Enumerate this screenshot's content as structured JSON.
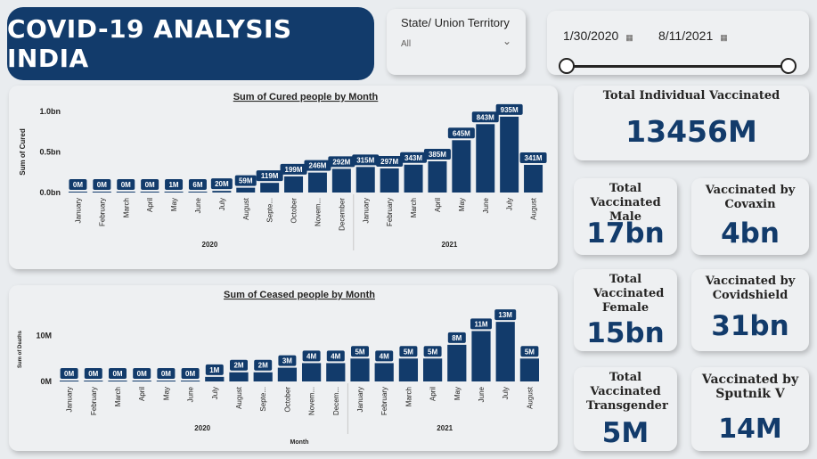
{
  "header": {
    "title": "COVID-19 ANALYSIS INDIA"
  },
  "slicer": {
    "label": "State/ Union Territory",
    "value": "All"
  },
  "date_range": {
    "start": "1/30/2020",
    "end": "8/11/2021"
  },
  "kpis": {
    "total_vaccinated": {
      "label": "Total Individual Vaccinated",
      "value": "13456M"
    },
    "male": {
      "label": "Total Vaccinated Male",
      "value": "17bn"
    },
    "covaxin": {
      "label": "Vaccinated by Covaxin",
      "value": "4bn"
    },
    "female": {
      "label": "Total Vaccinated Female",
      "value": "15bn"
    },
    "covidshield": {
      "label": "Vaccinated by Covidshield",
      "value": "31bn"
    },
    "transgender": {
      "label": "Total Vaccinated Transgender",
      "value": "5M"
    },
    "sputnik": {
      "label": "Vaccinated by Sputnik V",
      "value": "14M"
    }
  },
  "colors": {
    "bar": "#123b6b",
    "title_bg": "#123b6b",
    "accent_text": "#123b6b"
  },
  "chart_data": [
    {
      "type": "bar",
      "title": "Sum of Cured people by Month",
      "ylabel": "Sum of Cured",
      "xlabel": "",
      "ylim": [
        0,
        1000000000
      ],
      "yticks": [
        "0.0bn",
        "0.5bn",
        "1.0bn"
      ],
      "categories": [
        "January",
        "February",
        "March",
        "April",
        "May",
        "June",
        "July",
        "August",
        "Septe...",
        "October",
        "Novem...",
        "December",
        "January",
        "February",
        "March",
        "April",
        "May",
        "June",
        "July",
        "August"
      ],
      "year_groups": [
        {
          "year": "2020",
          "count": 12
        },
        {
          "year": "2021",
          "count": 8
        }
      ],
      "values": [
        0,
        0,
        0,
        0,
        1000000,
        6000000,
        20000000,
        59000000,
        119000000,
        199000000,
        246000000,
        292000000,
        315000000,
        297000000,
        343000000,
        385000000,
        645000000,
        843000000,
        935000000,
        341000000
      ],
      "labels": [
        "0M",
        "0M",
        "0M",
        "0M",
        "1M",
        "6M",
        "20M",
        "59M",
        "119M",
        "199M",
        "246M",
        "292M",
        "315M",
        "297M",
        "343M",
        "385M",
        "645M",
        "843M",
        "935M",
        "341M"
      ]
    },
    {
      "type": "bar",
      "title": "Sum of Ceased people by Month",
      "ylabel": "Sum of Deaths",
      "xlabel": "Month",
      "ylim": [
        0,
        14000000
      ],
      "yticks": [
        "0M",
        "10M"
      ],
      "categories": [
        "January",
        "February",
        "March",
        "April",
        "May",
        "June",
        "July",
        "August",
        "Septe...",
        "October",
        "Novem...",
        "Decem...",
        "January",
        "February",
        "March",
        "April",
        "May",
        "June",
        "July",
        "August"
      ],
      "year_groups": [
        {
          "year": "2020",
          "count": 12
        },
        {
          "year": "2021",
          "count": 8
        }
      ],
      "values": [
        0,
        0,
        0,
        0,
        0,
        0,
        1000000,
        2000000,
        2000000,
        3000000,
        4000000,
        4000000,
        5000000,
        4000000,
        5000000,
        5000000,
        8000000,
        11000000,
        13000000,
        5000000
      ],
      "labels": [
        "0M",
        "0M",
        "0M",
        "0M",
        "0M",
        "0M",
        "1M",
        "2M",
        "2M",
        "3M",
        "4M",
        "4M",
        "5M",
        "4M",
        "5M",
        "5M",
        "8M",
        "11M",
        "13M",
        "5M"
      ]
    }
  ]
}
